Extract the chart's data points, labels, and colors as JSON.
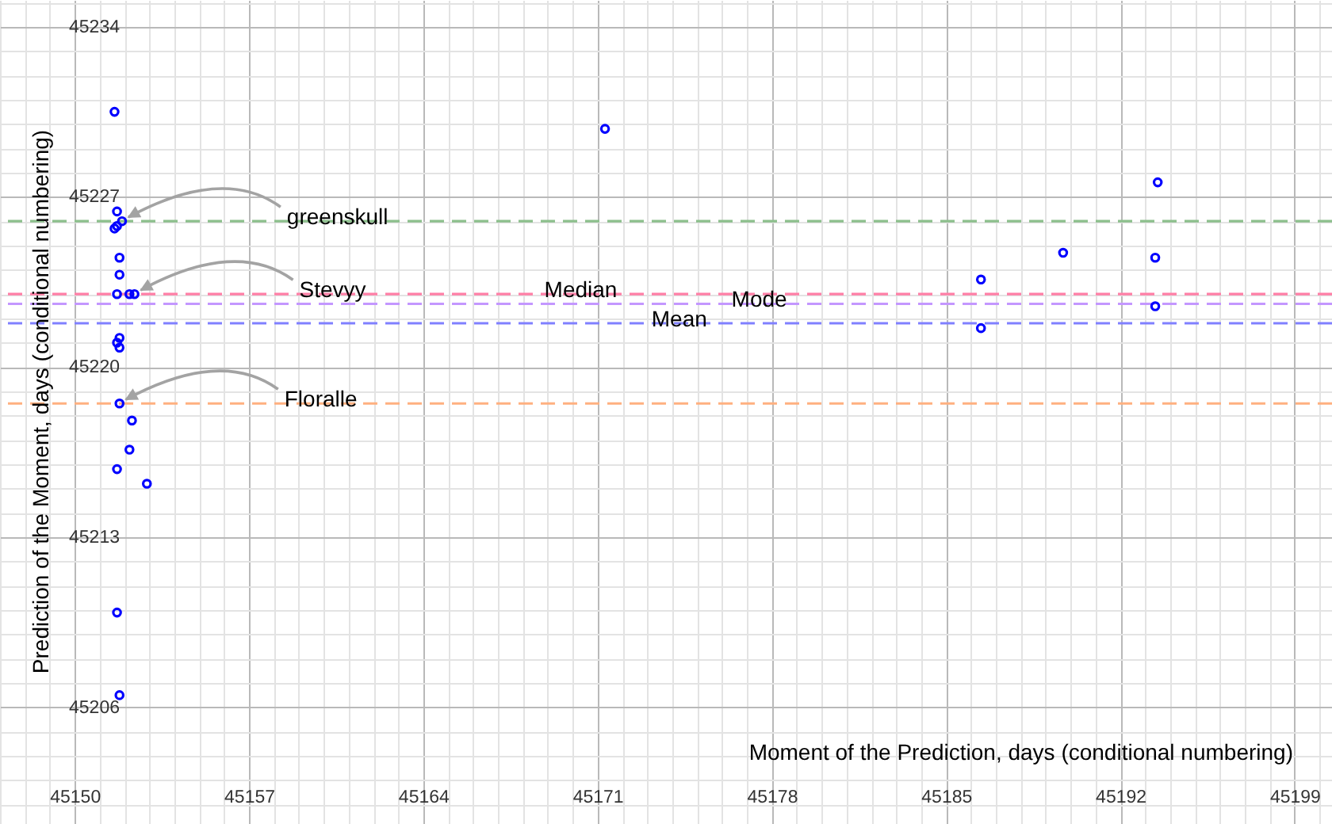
{
  "chart_data": {
    "type": "scatter",
    "xlabel": "Moment of the Prediction, days (conditional numbering)",
    "ylabel": "Prediction of the Moment, days (conditional numbering)",
    "x": [
      45151.6,
      45151.7,
      45151.9,
      45151.7,
      45151.6,
      45151.8,
      45151.8,
      45151.7,
      45152.2,
      45152.4,
      45151.8,
      45151.7,
      45151.8,
      45151.8,
      45152.3,
      45152.2,
      45151.7,
      45152.9,
      45151.7,
      45151.8,
      45171.3,
      45193.5,
      45189.7,
      45193.4,
      45186.4,
      45193.4,
      45186.4
    ],
    "values": [
      45230.5,
      45226.4,
      45226.0,
      45225.8,
      45225.7,
      45224.5,
      45223.8,
      45223.0,
      45223.0,
      45223.0,
      45221.2,
      45221.0,
      45220.8,
      45218.5,
      45217.8,
      45216.6,
      45215.8,
      45215.2,
      45209.9,
      45206.5,
      45229.8,
      45227.6,
      45224.7,
      45224.5,
      45223.6,
      45222.5,
      45221.6
    ],
    "color": "#0000ff",
    "marker": "circle",
    "xlim": [
      45147,
      45200.5
    ],
    "xticks": [
      45150,
      45157,
      45164,
      45171,
      45178,
      45185,
      45192,
      45199
    ],
    "ylim": [
      45201.2,
      45235.1
    ],
    "yticks": [
      45206,
      45213,
      45220,
      45227,
      45234
    ],
    "grid": true,
    "ref_lines": [
      {
        "axis": "y",
        "value": 45226.0,
        "color": "#8cbf8c",
        "line_style": "dashed"
      },
      {
        "axis": "y",
        "value": 45223.0,
        "label": "Median",
        "color": "#ff7fa6",
        "line_style": "dashed"
      },
      {
        "axis": "y",
        "value": 45222.6,
        "label": "Mode",
        "color": "#c397ff",
        "line_style": "dashed"
      },
      {
        "axis": "y",
        "value": 45221.8,
        "label": "Mean",
        "color": "#8080ff",
        "line_style": "dashed"
      },
      {
        "axis": "y",
        "value": 45218.5,
        "color": "#ffb080",
        "line_style": "dashed"
      }
    ],
    "annotations": [
      {
        "text": "greenskull",
        "x": 45151.9,
        "y": 45226.0
      },
      {
        "text": "Stevyy",
        "x": 45152.4,
        "y": 45223.0
      },
      {
        "text": "Floralle",
        "x": 45151.8,
        "y": 45218.5
      }
    ]
  }
}
